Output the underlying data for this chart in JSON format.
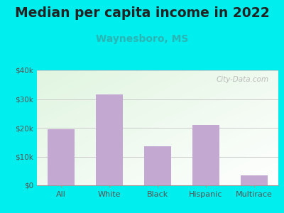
{
  "title": "Median per capita income in 2022",
  "subtitle": "Waynesboro, MS",
  "categories": [
    "All",
    "White",
    "Black",
    "Hispanic",
    "Multirace"
  ],
  "values": [
    19500,
    31500,
    13500,
    21000,
    3500
  ],
  "bar_color": "#C3A8D1",
  "title_fontsize": 13.5,
  "subtitle_fontsize": 10,
  "subtitle_color": "#2ab5b5",
  "background_outer": "#00EEEE",
  "ylim": [
    0,
    40000
  ],
  "yticks": [
    0,
    10000,
    20000,
    30000,
    40000
  ],
  "ytick_labels": [
    "$0",
    "$10k",
    "$20k",
    "$30k",
    "$40k"
  ],
  "watermark": "City-Data.com",
  "tick_label_color": "#555555",
  "grid_color": "#cccccc"
}
